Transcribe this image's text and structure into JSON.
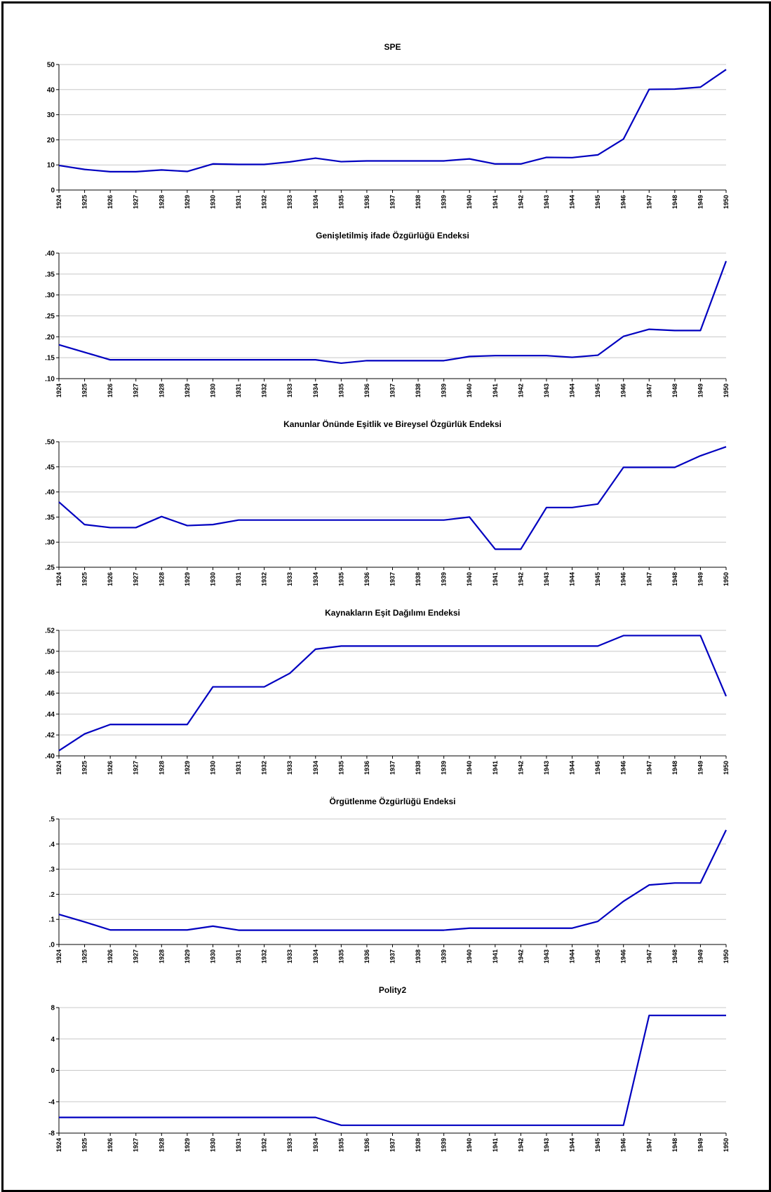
{
  "figure": {
    "frame": "black border"
  },
  "chart_data": [
    {
      "type": "line",
      "title": "SPE",
      "xlabel": "",
      "ylabel": "",
      "categories": [
        "1924",
        "1925",
        "1926",
        "1927",
        "1928",
        "1929",
        "1930",
        "1931",
        "1932",
        "1933",
        "1934",
        "1935",
        "1936",
        "1937",
        "1938",
        "1939",
        "1940",
        "1941",
        "1942",
        "1943",
        "1944",
        "1945",
        "1946",
        "1947",
        "1948",
        "1949",
        "1950"
      ],
      "series": [
        {
          "values": [
            9.8,
            8.2,
            7.3,
            7.3,
            8.0,
            7.4,
            10.4,
            10.2,
            10.2,
            11.2,
            12.7,
            11.3,
            11.6,
            11.6,
            11.6,
            11.6,
            12.4,
            10.4,
            10.4,
            13.0,
            12.9,
            14.0,
            20.3,
            40.1,
            40.2,
            41.0,
            48.0
          ],
          "color": "#0000c0"
        }
      ],
      "ylim": [
        0,
        50
      ],
      "yticks": [
        0,
        10,
        20,
        30,
        40,
        50
      ],
      "ytick_labels": [
        "0",
        "10",
        "20",
        "30",
        "40",
        "50"
      ],
      "grid": true
    },
    {
      "type": "line",
      "title": "Genişletilmiş ifade Özgürlüğü Endeksi",
      "xlabel": "",
      "ylabel": "",
      "categories": [
        "1924",
        "1925",
        "1926",
        "1927",
        "1928",
        "1929",
        "1930",
        "1931",
        "1932",
        "1933",
        "1934",
        "1935",
        "1936",
        "1937",
        "1938",
        "1939",
        "1940",
        "1941",
        "1942",
        "1943",
        "1944",
        "1945",
        "1946",
        "1947",
        "1948",
        "1949",
        "1950"
      ],
      "series": [
        {
          "values": [
            0.181,
            0.163,
            0.145,
            0.145,
            0.145,
            0.145,
            0.145,
            0.145,
            0.145,
            0.145,
            0.145,
            0.137,
            0.143,
            0.143,
            0.143,
            0.143,
            0.153,
            0.155,
            0.155,
            0.155,
            0.151,
            0.156,
            0.201,
            0.218,
            0.215,
            0.215,
            0.381
          ],
          "color": "#0000c0"
        }
      ],
      "ylim": [
        0.1,
        0.4
      ],
      "yticks": [
        0.1,
        0.15,
        0.2,
        0.25,
        0.3,
        0.35,
        0.4
      ],
      "ytick_labels": [
        ".10",
        ".15",
        ".20",
        ".25",
        ".30",
        ".35",
        ".40"
      ],
      "grid": true
    },
    {
      "type": "line",
      "title": "Kanunlar Önünde Eşitlik ve Bireysel Özgürlük Endeksi",
      "xlabel": "",
      "ylabel": "",
      "categories": [
        "1924",
        "1925",
        "1926",
        "1927",
        "1928",
        "1929",
        "1930",
        "1931",
        "1932",
        "1933",
        "1934",
        "1935",
        "1936",
        "1937",
        "1938",
        "1939",
        "1940",
        "1941",
        "1942",
        "1943",
        "1944",
        "1945",
        "1946",
        "1947",
        "1948",
        "1949",
        "1950"
      ],
      "series": [
        {
          "values": [
            0.38,
            0.335,
            0.329,
            0.329,
            0.351,
            0.333,
            0.335,
            0.344,
            0.344,
            0.344,
            0.344,
            0.344,
            0.344,
            0.344,
            0.344,
            0.344,
            0.35,
            0.286,
            0.286,
            0.369,
            0.369,
            0.376,
            0.449,
            0.449,
            0.449,
            0.472,
            0.49
          ],
          "color": "#0000c0"
        }
      ],
      "ylim": [
        0.25,
        0.5
      ],
      "yticks": [
        0.25,
        0.3,
        0.35,
        0.4,
        0.45,
        0.5
      ],
      "ytick_labels": [
        ".25",
        ".30",
        ".35",
        ".40",
        ".45",
        ".50"
      ],
      "grid": true
    },
    {
      "type": "line",
      "title": "Kaynakların Eşit Dağılımı Endeksi",
      "xlabel": "",
      "ylabel": "",
      "categories": [
        "1924",
        "1925",
        "1926",
        "1927",
        "1928",
        "1929",
        "1930",
        "1931",
        "1932",
        "1933",
        "1934",
        "1935",
        "1936",
        "1937",
        "1938",
        "1939",
        "1940",
        "1941",
        "1942",
        "1943",
        "1944",
        "1945",
        "1946",
        "1947",
        "1948",
        "1949",
        "1950"
      ],
      "series": [
        {
          "values": [
            0.405,
            0.421,
            0.43,
            0.43,
            0.43,
            0.43,
            0.466,
            0.466,
            0.466,
            0.479,
            0.502,
            0.505,
            0.505,
            0.505,
            0.505,
            0.505,
            0.505,
            0.505,
            0.505,
            0.505,
            0.505,
            0.505,
            0.515,
            0.515,
            0.515,
            0.515,
            0.457
          ],
          "color": "#0000c0"
        }
      ],
      "ylim": [
        0.4,
        0.52
      ],
      "yticks": [
        0.4,
        0.42,
        0.44,
        0.46,
        0.48,
        0.5,
        0.52
      ],
      "ytick_labels": [
        ".40",
        ".42",
        ".44",
        ".46",
        ".48",
        ".50",
        ".52"
      ],
      "grid": true
    },
    {
      "type": "line",
      "title": "Örgütlenme Özgürlüğü Endeksi",
      "xlabel": "",
      "ylabel": "",
      "categories": [
        "1924",
        "1925",
        "1926",
        "1927",
        "1928",
        "1929",
        "1930",
        "1931",
        "1932",
        "1933",
        "1934",
        "1935",
        "1936",
        "1937",
        "1938",
        "1939",
        "1940",
        "1941",
        "1942",
        "1943",
        "1944",
        "1945",
        "1946",
        "1947",
        "1948",
        "1949",
        "1950"
      ],
      "series": [
        {
          "values": [
            0.12,
            0.09,
            0.058,
            0.058,
            0.058,
            0.058,
            0.073,
            0.057,
            0.057,
            0.057,
            0.057,
            0.057,
            0.057,
            0.057,
            0.057,
            0.057,
            0.065,
            0.065,
            0.065,
            0.065,
            0.065,
            0.092,
            0.172,
            0.237,
            0.245,
            0.245,
            0.456
          ],
          "color": "#0000c0"
        }
      ],
      "ylim": [
        0.0,
        0.5
      ],
      "yticks": [
        0.0,
        0.1,
        0.2,
        0.3,
        0.4,
        0.5
      ],
      "ytick_labels": [
        ".0",
        ".1",
        ".2",
        ".3",
        ".4",
        ".5"
      ],
      "grid": true
    },
    {
      "type": "line",
      "title": "Polity2",
      "xlabel": "",
      "ylabel": "",
      "categories": [
        "1924",
        "1925",
        "1926",
        "1927",
        "1928",
        "1929",
        "1930",
        "1931",
        "1932",
        "1933",
        "1934",
        "1935",
        "1936",
        "1937",
        "1938",
        "1939",
        "1940",
        "1941",
        "1942",
        "1943",
        "1944",
        "1945",
        "1946",
        "1947",
        "1948",
        "1949",
        "1950"
      ],
      "series": [
        {
          "values": [
            -6,
            -6,
            -6,
            -6,
            -6,
            -6,
            -6,
            -6,
            -6,
            -6,
            -6,
            -7,
            -7,
            -7,
            -7,
            -7,
            -7,
            -7,
            -7,
            -7,
            -7,
            -7,
            -7,
            7,
            7,
            7,
            7
          ],
          "color": "#0000c0"
        }
      ],
      "ylim": [
        -8,
        8
      ],
      "yticks": [
        -8,
        -4,
        0,
        4,
        8
      ],
      "ytick_labels": [
        "-8",
        "-4",
        "0",
        "4",
        "8"
      ],
      "grid": true
    }
  ]
}
